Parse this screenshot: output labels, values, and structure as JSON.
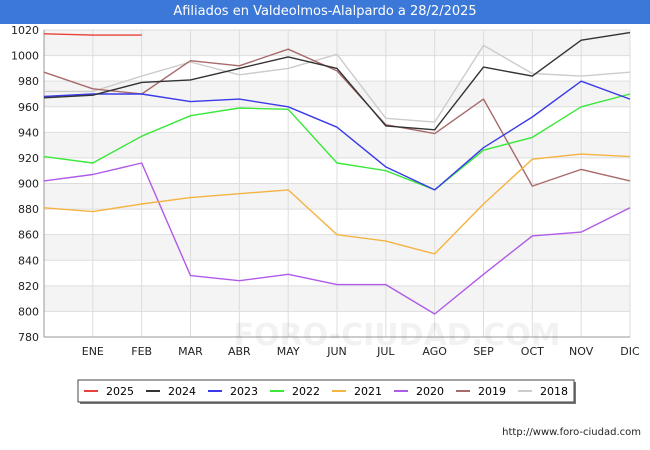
{
  "title": "Afiliados en Valdeolmos-Alalpardo a 28/2/2025",
  "watermark": "FORO-CIUDAD.COM",
  "footer_url": "http://www.foro-ciudad.com",
  "chart_data": {
    "type": "line",
    "title": "Afiliados en Valdeolmos-Alalpardo a 28/2/2025",
    "categories": [
      "",
      "ENE",
      "FEB",
      "MAR",
      "ABR",
      "MAY",
      "JUN",
      "JUL",
      "AGO",
      "SEP",
      "OCT",
      "NOV",
      "DIC"
    ],
    "ylim": [
      780,
      1020
    ],
    "yticks": [
      780,
      800,
      820,
      840,
      860,
      880,
      900,
      920,
      940,
      960,
      980,
      1000,
      1020
    ],
    "grid": true,
    "legend_position": "bottom",
    "series": [
      {
        "name": "2025",
        "color": "#e8403a",
        "values": [
          1017,
          1016,
          1016,
          null,
          null,
          null,
          null,
          null,
          null,
          null,
          null,
          null,
          null
        ]
      },
      {
        "name": "2024",
        "color": "#333333",
        "values": [
          967,
          969,
          979,
          981,
          990,
          999,
          990,
          945,
          942,
          991,
          984,
          1012,
          1018
        ]
      },
      {
        "name": "2023",
        "color": "#3a3ae8",
        "values": [
          968,
          970,
          970,
          964,
          966,
          960,
          944,
          913,
          895,
          928,
          952,
          980,
          966
        ]
      },
      {
        "name": "2022",
        "color": "#3ae83a",
        "values": [
          921,
          916,
          937,
          953,
          959,
          958,
          916,
          910,
          895,
          926,
          936,
          960,
          970
        ]
      },
      {
        "name": "2021",
        "color": "#f5b342",
        "values": [
          881,
          878,
          884,
          889,
          892,
          895,
          860,
          855,
          845,
          884,
          919,
          923,
          921
        ]
      },
      {
        "name": "2020",
        "color": "#b05ae8",
        "values": [
          902,
          907,
          916,
          828,
          824,
          829,
          821,
          821,
          798,
          829,
          859,
          862,
          881
        ]
      },
      {
        "name": "2019",
        "color": "#a86a6a",
        "values": [
          987,
          974,
          970,
          996,
          992,
          1005,
          988,
          946,
          939,
          966,
          898,
          911,
          902
        ]
      },
      {
        "name": "2018",
        "color": "#cccccc",
        "values": [
          972,
          972,
          984,
          995,
          985,
          990,
          1001,
          951,
          948,
          1008,
          986,
          984,
          987
        ]
      }
    ]
  }
}
